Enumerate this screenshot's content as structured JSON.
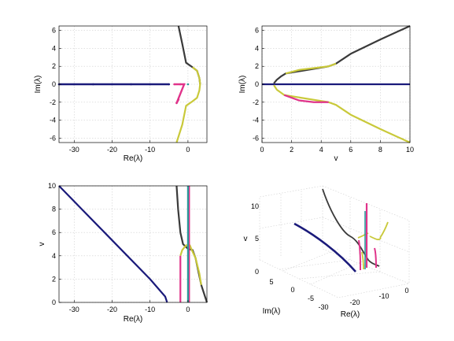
{
  "chart_data": [
    {
      "id": "top-left",
      "type": "scatter",
      "xlabel": "Re(λ)",
      "ylabel": "Im(λ)",
      "xlim": [
        -34,
        5
      ],
      "ylim": [
        -6.5,
        6.5
      ],
      "xticks": [
        -30,
        -20,
        -10,
        0
      ],
      "yticks": [
        -6,
        -4,
        -2,
        0,
        2,
        4,
        6
      ],
      "grid": true,
      "series": [
        {
          "color": "#1a1a7a",
          "style": "markers",
          "points": [
            [
              -34,
              0
            ],
            [
              -30,
              0
            ],
            [
              -25,
              0
            ],
            [
              -20,
              0
            ],
            [
              -15,
              0
            ],
            [
              -10,
              0
            ],
            [
              -5,
              0
            ]
          ]
        },
        {
          "color": "#e0338a",
          "style": "markers",
          "points": [
            [
              -3.6,
              0
            ],
            [
              -2,
              0
            ],
            [
              -1,
              0
            ],
            [
              -3,
              -2.1
            ],
            [
              -2.5,
              -1.7
            ]
          ]
        },
        {
          "color": "#3a3a3a",
          "style": "line",
          "points": [
            [
              -2.5,
              6.5
            ],
            [
              -1.5,
              4.5
            ],
            [
              -0.5,
              2.4
            ],
            [
              1.2,
              1.9
            ],
            [
              2.4,
              1.5
            ],
            [
              3,
              0.7
            ],
            [
              3.2,
              0
            ]
          ]
        },
        {
          "color": "#c9c93a",
          "style": "line",
          "points": [
            [
              1.2,
              1.9
            ],
            [
              2.4,
              1.5
            ],
            [
              3,
              0.7
            ],
            [
              3.2,
              0
            ],
            [
              3,
              -0.7
            ],
            [
              2.4,
              -1.5
            ],
            [
              1.2,
              -1.9
            ],
            [
              -0.5,
              -2.4
            ],
            [
              -1.5,
              -4.5
            ],
            [
              -3,
              -6.5
            ]
          ]
        },
        {
          "color": "#2a9a9a",
          "style": "markers",
          "points": [
            [
              0,
              0
            ]
          ]
        }
      ]
    },
    {
      "id": "top-right",
      "type": "scatter",
      "xlabel": "v",
      "ylabel": "Im(λ)",
      "xlim": [
        0,
        10
      ],
      "ylim": [
        -6.5,
        6.5
      ],
      "xticks": [
        0,
        2,
        4,
        6,
        8,
        10
      ],
      "yticks": [
        -6,
        -4,
        -2,
        0,
        2,
        4,
        6
      ],
      "grid": true,
      "series": [
        {
          "color": "#1a1a7a",
          "style": "line",
          "points": [
            [
              0,
              0
            ],
            [
              10,
              0
            ]
          ]
        },
        {
          "color": "#3a3a3a",
          "style": "line",
          "points": [
            [
              0.8,
              0.1
            ],
            [
              1,
              0.5
            ],
            [
              1.3,
              0.9
            ],
            [
              1.6,
              1.2
            ],
            [
              4.5,
              2
            ],
            [
              5,
              2.3
            ],
            [
              6,
              3.4
            ],
            [
              8,
              5
            ],
            [
              10,
              6.5
            ]
          ]
        },
        {
          "color": "#c9c93a",
          "style": "line",
          "points": [
            [
              1.6,
              1.2
            ],
            [
              2.5,
              1.6
            ],
            [
              4.5,
              2
            ],
            [
              5,
              2.3
            ]
          ]
        },
        {
          "color": "#c9c93a",
          "style": "line",
          "points": [
            [
              0.8,
              -0.1
            ],
            [
              1,
              -0.6
            ],
            [
              1.5,
              -1.2
            ],
            [
              4.5,
              -2
            ],
            [
              5,
              -2.3
            ],
            [
              6,
              -3.4
            ],
            [
              8,
              -5
            ],
            [
              10,
              -6.5
            ]
          ]
        },
        {
          "color": "#e0338a",
          "style": "line",
          "points": [
            [
              1.5,
              -1.2
            ],
            [
              2.5,
              -1.8
            ],
            [
              3.5,
              -2
            ],
            [
              4.5,
              -2
            ]
          ]
        }
      ]
    },
    {
      "id": "bottom-left",
      "type": "line",
      "xlabel": "Re(λ)",
      "ylabel": "v",
      "xlim": [
        -34,
        5
      ],
      "ylim": [
        0,
        10
      ],
      "xticks": [
        -30,
        -20,
        -10,
        0
      ],
      "yticks": [
        0,
        2,
        4,
        6,
        8,
        10
      ],
      "grid": true,
      "series": [
        {
          "color": "#1a1a7a",
          "style": "line",
          "points": [
            [
              -34,
              10
            ],
            [
              -28,
              8
            ],
            [
              -22,
              6
            ],
            [
              -16,
              4
            ],
            [
              -10,
              2
            ],
            [
              -6,
              0.5
            ],
            [
              -5.5,
              0
            ]
          ]
        },
        {
          "color": "#3a3a3a",
          "style": "line",
          "points": [
            [
              -3,
              10
            ],
            [
              -2.6,
              8
            ],
            [
              -2,
              6
            ],
            [
              -1.3,
              5
            ],
            [
              0,
              4.6
            ],
            [
              1.2,
              4.5
            ],
            [
              2,
              3.8
            ],
            [
              3.5,
              1.5
            ],
            [
              4.5,
              0.5
            ],
            [
              5,
              0
            ]
          ]
        },
        {
          "color": "#c9c93a",
          "style": "line",
          "points": [
            [
              -2,
              4
            ],
            [
              -1.5,
              4.5
            ],
            [
              -0.5,
              4.9
            ],
            [
              0.5,
              4.9
            ],
            [
              1,
              4.5
            ],
            [
              2,
              3.8
            ],
            [
              3,
              2.5
            ],
            [
              3.5,
              1.5
            ]
          ]
        },
        {
          "color": "#e0338a",
          "style": "line",
          "points": [
            [
              -2,
              0
            ],
            [
              -2,
              2.5
            ],
            [
              -2,
              4
            ]
          ]
        },
        {
          "color": "#e0338a",
          "style": "line",
          "points": [
            [
              0.3,
              0
            ],
            [
              0.3,
              3.5
            ],
            [
              0.3,
              6
            ],
            [
              0.3,
              10
            ]
          ]
        },
        {
          "color": "#2a9a9a",
          "style": "line",
          "points": [
            [
              0,
              0
            ],
            [
              0,
              10
            ]
          ]
        }
      ]
    },
    {
      "id": "bottom-right",
      "type": "scatter",
      "xlabel": "Re(λ)",
      "ylabel": "Im(λ)",
      "zlabel": "v",
      "xticks": [
        -30,
        -20,
        -10,
        0
      ],
      "yticks": [
        -5,
        0,
        5
      ],
      "zticks": [
        0,
        5,
        10
      ],
      "grid": true,
      "view": "3d",
      "series": [
        {
          "color": "#1a1a7a",
          "style": "3d-line"
        },
        {
          "color": "#3a3a3a",
          "style": "3d-line"
        },
        {
          "color": "#c9c93a",
          "style": "3d-line"
        },
        {
          "color": "#e0338a",
          "style": "3d-line"
        },
        {
          "color": "#2a9a9a",
          "style": "3d-line"
        }
      ]
    }
  ]
}
